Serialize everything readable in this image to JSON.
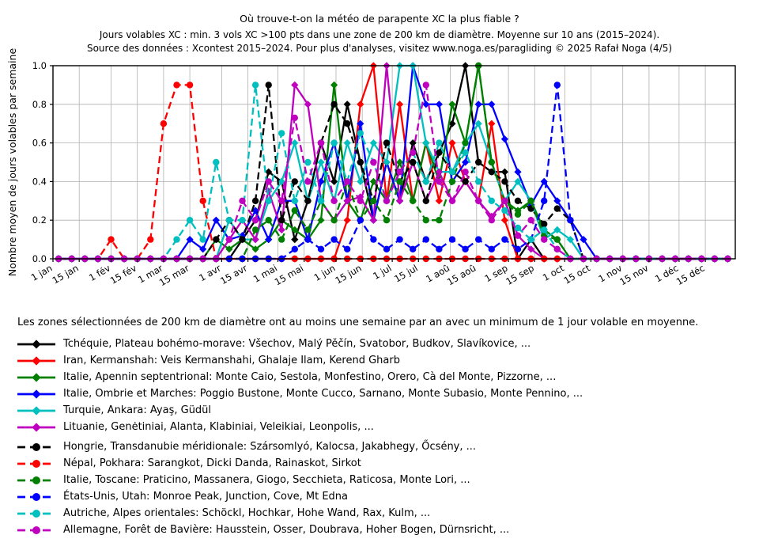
{
  "figure": {
    "title": "Où trouve-t-on la météo de parapente XC la plus fiable ?",
    "subtitle1": "Jours volables XC : min. 3 vols XC >100 pts dans une zone de 200 km de diamètre. Moyenne sur 10 ans (2015–2024).",
    "subtitle2": "Source des données : Xcontest 2015–2024. Pour plus d'analyses, visitez www.noga.es/paragliding © 2025 Rafał Noga (4/5)"
  },
  "legend": {
    "note": "Les zones sélectionnées de 200 km de diamètre ont au moins une semaine par an avec un minimum de 1 jour volable en moyenne."
  },
  "chart_data": {
    "type": "line",
    "title": "Où trouve-t-on la météo de parapente XC la plus fiable ?",
    "xlabel": "",
    "ylabel": "Nombre moyen de jours volables par semaine",
    "ylim": [
      0.0,
      1.0
    ],
    "yticks": [
      "0.0",
      "0.2",
      "0.4",
      "0.6",
      "0.8",
      "1.0"
    ],
    "grid": true,
    "x_unit": "weeks (52 per year)",
    "xticks": [
      {
        "label": "1 jan",
        "day": 1
      },
      {
        "label": "15 jan",
        "day": 15
      },
      {
        "label": "1 fév",
        "day": 32
      },
      {
        "label": "15 fév",
        "day": 46
      },
      {
        "label": "1 mar",
        "day": 60
      },
      {
        "label": "15 mar",
        "day": 74
      },
      {
        "label": "1 avr",
        "day": 91
      },
      {
        "label": "15 avr",
        "day": 105
      },
      {
        "label": "1 mai",
        "day": 121
      },
      {
        "label": "15 mai",
        "day": 135
      },
      {
        "label": "1 jun",
        "day": 152
      },
      {
        "label": "15 jun",
        "day": 166
      },
      {
        "label": "1 jul",
        "day": 182
      },
      {
        "label": "15 jul",
        "day": 196
      },
      {
        "label": "1 aoû",
        "day": 213
      },
      {
        "label": "15 aoû",
        "day": 227
      },
      {
        "label": "1 sep",
        "day": 244
      },
      {
        "label": "15 sep",
        "day": 258
      },
      {
        "label": "1 oct",
        "day": 274
      },
      {
        "label": "15 oct",
        "day": 288
      },
      {
        "label": "1 nov",
        "day": 305
      },
      {
        "label": "15 nov",
        "day": 319
      },
      {
        "label": "1 déc",
        "day": 335
      },
      {
        "label": "15 déc",
        "day": 349
      }
    ],
    "series": [
      {
        "label": "Tchéquie, Plateau bohémo-morave: Všechov, Malý Pěčín, Svatobor, Budkov, Slavíkovice, ...",
        "color": "#000000",
        "style": "solid",
        "marker": "diamond",
        "values": [
          0,
          0,
          0,
          0,
          0,
          0,
          0,
          0,
          0,
          0,
          0,
          0,
          0,
          0,
          0.1,
          0.2,
          0.45,
          0.4,
          0.1,
          0.3,
          0.6,
          0.4,
          0.8,
          0.5,
          0.2,
          0.5,
          0.3,
          0.6,
          0.4,
          0.55,
          0.7,
          1.0,
          0.5,
          0.45,
          0.45,
          0,
          0.1,
          0,
          0,
          0,
          0,
          0,
          0,
          0,
          0,
          0,
          0,
          0,
          0,
          0,
          0,
          0
        ]
      },
      {
        "label": "Iran, Kermanshah: Veis Kermanshahi, Ghalaje Ilam, Kerend Gharb",
        "color": "#ff0000",
        "style": "solid",
        "marker": "diamond",
        "values": [
          0,
          0,
          0,
          0,
          0,
          0,
          0,
          0,
          0,
          0,
          0,
          0,
          0,
          0,
          0,
          0,
          0,
          0,
          0,
          0,
          0,
          0,
          0.2,
          0.8,
          1.0,
          0.3,
          0.8,
          0.3,
          0.6,
          0.3,
          0.6,
          0.4,
          0.3,
          0.7,
          0.2,
          0,
          0,
          0,
          0,
          0,
          0,
          0,
          0,
          0,
          0,
          0,
          0,
          0,
          0,
          0,
          0,
          0
        ]
      },
      {
        "label": "Italie, Apennin septentrional: Monte Caio, Sestola, Monfestino, Orero, Cà del Monte, Pizzorne, ...",
        "color": "#008000",
        "style": "solid",
        "marker": "diamond",
        "values": [
          0,
          0,
          0,
          0,
          0,
          0,
          0,
          0,
          0,
          0,
          0,
          0,
          0.1,
          0.05,
          0.1,
          0.05,
          0.1,
          0.2,
          0.15,
          0.1,
          0.2,
          0.9,
          0.3,
          0.2,
          0.4,
          0.3,
          0.5,
          0.3,
          0.6,
          0.4,
          0.8,
          0.6,
          1.0,
          0.5,
          0.3,
          0.25,
          0.3,
          0.15,
          0.1,
          0,
          0,
          0,
          0,
          0,
          0,
          0,
          0,
          0,
          0,
          0,
          0,
          0
        ]
      },
      {
        "label": "Italie, Ombrie et Marches: Poggio Bustone, Monte Cucco, Sarnano, Monte Subasio, Monte Pennino, ...",
        "color": "#0000ff",
        "style": "solid",
        "marker": "diamond",
        "values": [
          0,
          0,
          0,
          0,
          0,
          0,
          0,
          0,
          0,
          0,
          0.1,
          0.05,
          0.2,
          0.1,
          0.12,
          0.25,
          0.1,
          0.3,
          0.3,
          0.1,
          0.4,
          0.6,
          0.3,
          0.7,
          0.2,
          0.5,
          0.3,
          1.0,
          0.8,
          0.8,
          0.4,
          0.5,
          0.8,
          0.8,
          0.62,
          0.45,
          0.28,
          0.4,
          0.3,
          0.2,
          0.1,
          0,
          0,
          0,
          0,
          0,
          0,
          0,
          0,
          0,
          0,
          0
        ]
      },
      {
        "label": "Turquie, Ankara: Ayaş, Güdül",
        "color": "#00bfbf",
        "style": "solid",
        "marker": "diamond",
        "values": [
          0,
          0,
          0,
          0,
          0,
          0,
          0,
          0,
          0,
          0,
          0,
          0,
          0,
          0.2,
          0.1,
          0.1,
          0.3,
          0.4,
          0.6,
          0.3,
          0.5,
          0.3,
          0.6,
          0.4,
          0.6,
          0.5,
          1.0,
          1.0,
          0.6,
          0.45,
          0.45,
          0.6,
          0.7,
          0.5,
          0.3,
          0.4,
          0.3,
          0.1,
          0.15,
          0.1,
          0,
          0,
          0,
          0,
          0,
          0,
          0,
          0,
          0,
          0,
          0,
          0
        ]
      },
      {
        "label": "Lituanie, Genėtiniai, Alanta, Klabiniai, Veleikiai, Leonpolis, ...",
        "color": "#bf00bf",
        "style": "solid",
        "marker": "diamond",
        "values": [
          0,
          0,
          0,
          0,
          0,
          0,
          0,
          0,
          0,
          0,
          0,
          0,
          0,
          0.1,
          0.2,
          0.1,
          0.35,
          0.15,
          0.9,
          0.8,
          0.3,
          0.2,
          0.3,
          0.32,
          0.2,
          1.0,
          0.3,
          0.5,
          0.3,
          0.45,
          0.3,
          0.4,
          0.3,
          0.22,
          0.3,
          0.12,
          0.05,
          0,
          0,
          0,
          0,
          0,
          0,
          0,
          0,
          0,
          0,
          0,
          0,
          0,
          0,
          0
        ]
      },
      {
        "label": "Hongrie, Transdanubie méridionale: Szársomlyó, Kalocsa, Jakabhegy, Őcsény, ...",
        "color": "#000000",
        "style": "dashed",
        "marker": "circle",
        "values": [
          0,
          0,
          0,
          0,
          0,
          0,
          0,
          0,
          0,
          0,
          0,
          0,
          0.1,
          0.2,
          0.1,
          0.3,
          0.9,
          0.2,
          0.4,
          0.3,
          0.6,
          0.8,
          0.7,
          0.5,
          0.3,
          0.6,
          0.4,
          0.5,
          0.3,
          0.55,
          0.45,
          0.4,
          0.5,
          0.45,
          0.4,
          0.3,
          0.26,
          0.18,
          0.26,
          0.2,
          0,
          0,
          0,
          0,
          0,
          0,
          0,
          0,
          0,
          0,
          0,
          0
        ]
      },
      {
        "label": "Népal, Pokhara: Sarangkot, Dicki Danda, Rainaskot, Sirkot",
        "color": "#ff0000",
        "style": "dashed",
        "marker": "circle",
        "values": [
          0,
          0,
          0,
          0,
          0.1,
          0,
          0,
          0.1,
          0.7,
          0.9,
          0.9,
          0.3,
          0,
          0,
          0,
          0,
          0,
          0,
          0,
          0,
          0,
          0,
          0,
          0,
          0,
          0,
          0,
          0,
          0,
          0,
          0,
          0,
          0,
          0,
          0,
          0,
          0,
          0,
          0,
          0,
          0,
          0,
          0,
          0,
          0,
          0,
          0,
          0,
          0,
          0,
          0,
          0
        ]
      },
      {
        "label": "Italie, Toscane: Praticino, Massanera, Giogo, Secchieta, Raticosa, Monte Lori, ...",
        "color": "#008000",
        "style": "dashed",
        "marker": "circle",
        "values": [
          0,
          0,
          0,
          0,
          0,
          0,
          0,
          0,
          0,
          0,
          0,
          0,
          0,
          0,
          0,
          0.15,
          0.2,
          0.1,
          0.25,
          0.15,
          0.3,
          0.2,
          0.4,
          0.2,
          0.3,
          0.2,
          0.4,
          0.3,
          0.2,
          0.2,
          0.4,
          0.6,
          1.0,
          0.5,
          0.3,
          0.23,
          0.3,
          0.12,
          0.1,
          0,
          0,
          0,
          0,
          0,
          0,
          0,
          0,
          0,
          0,
          0,
          0,
          0
        ]
      },
      {
        "label": "États-Unis, Utah: Monroe Peak, Junction, Cove, Mt Edna",
        "color": "#0000ff",
        "style": "dashed",
        "marker": "circle",
        "values": [
          0,
          0,
          0,
          0,
          0,
          0,
          0,
          0,
          0,
          0,
          0,
          0,
          0,
          0,
          0,
          0,
          0,
          0,
          0.05,
          0.1,
          0.05,
          0.1,
          0.05,
          0.2,
          0.1,
          0.05,
          0.1,
          0.05,
          0.1,
          0.05,
          0.1,
          0.05,
          0.1,
          0.05,
          0.1,
          0.05,
          0.1,
          0.3,
          0.9,
          0.2,
          0,
          0,
          0,
          0,
          0,
          0,
          0,
          0,
          0,
          0,
          0,
          0
        ]
      },
      {
        "label": "Autriche, Alpes orientales: Schöckl, Hochkar, Hohe Wand, Rax, Kulm, ...",
        "color": "#00bfbf",
        "style": "dashed",
        "marker": "circle",
        "values": [
          0,
          0,
          0,
          0,
          0,
          0,
          0,
          0,
          0,
          0.1,
          0.2,
          0.1,
          0.5,
          0.2,
          0.2,
          0.9,
          0.3,
          0.65,
          0.3,
          0.5,
          0.3,
          0.6,
          0.4,
          0.65,
          0.5,
          0.3,
          0.45,
          0.55,
          0.4,
          0.6,
          0.45,
          0.55,
          0.4,
          0.3,
          0.25,
          0.16,
          0.1,
          0.15,
          0.05,
          0,
          0,
          0,
          0,
          0,
          0,
          0,
          0,
          0,
          0,
          0,
          0,
          0
        ]
      },
      {
        "label": "Allemagne, Forêt de Bavière: Hausstein, Osser, Doubrava, Hoher Bogen, Dürnsricht, ...",
        "color": "#bf00bf",
        "style": "dashed",
        "marker": "circle",
        "values": [
          0,
          0,
          0,
          0,
          0,
          0,
          0,
          0,
          0,
          0,
          0,
          0,
          0,
          0.1,
          0.3,
          0.2,
          0.4,
          0.3,
          0.73,
          0.4,
          0.6,
          0.3,
          0.4,
          0.3,
          0.5,
          0.3,
          0.45,
          0.55,
          0.9,
          0.4,
          0.3,
          0.45,
          0.3,
          0.2,
          0.3,
          0.12,
          0.2,
          0.1,
          0.05,
          0,
          0,
          0,
          0,
          0,
          0,
          0,
          0,
          0,
          0,
          0,
          0,
          0
        ]
      }
    ]
  }
}
